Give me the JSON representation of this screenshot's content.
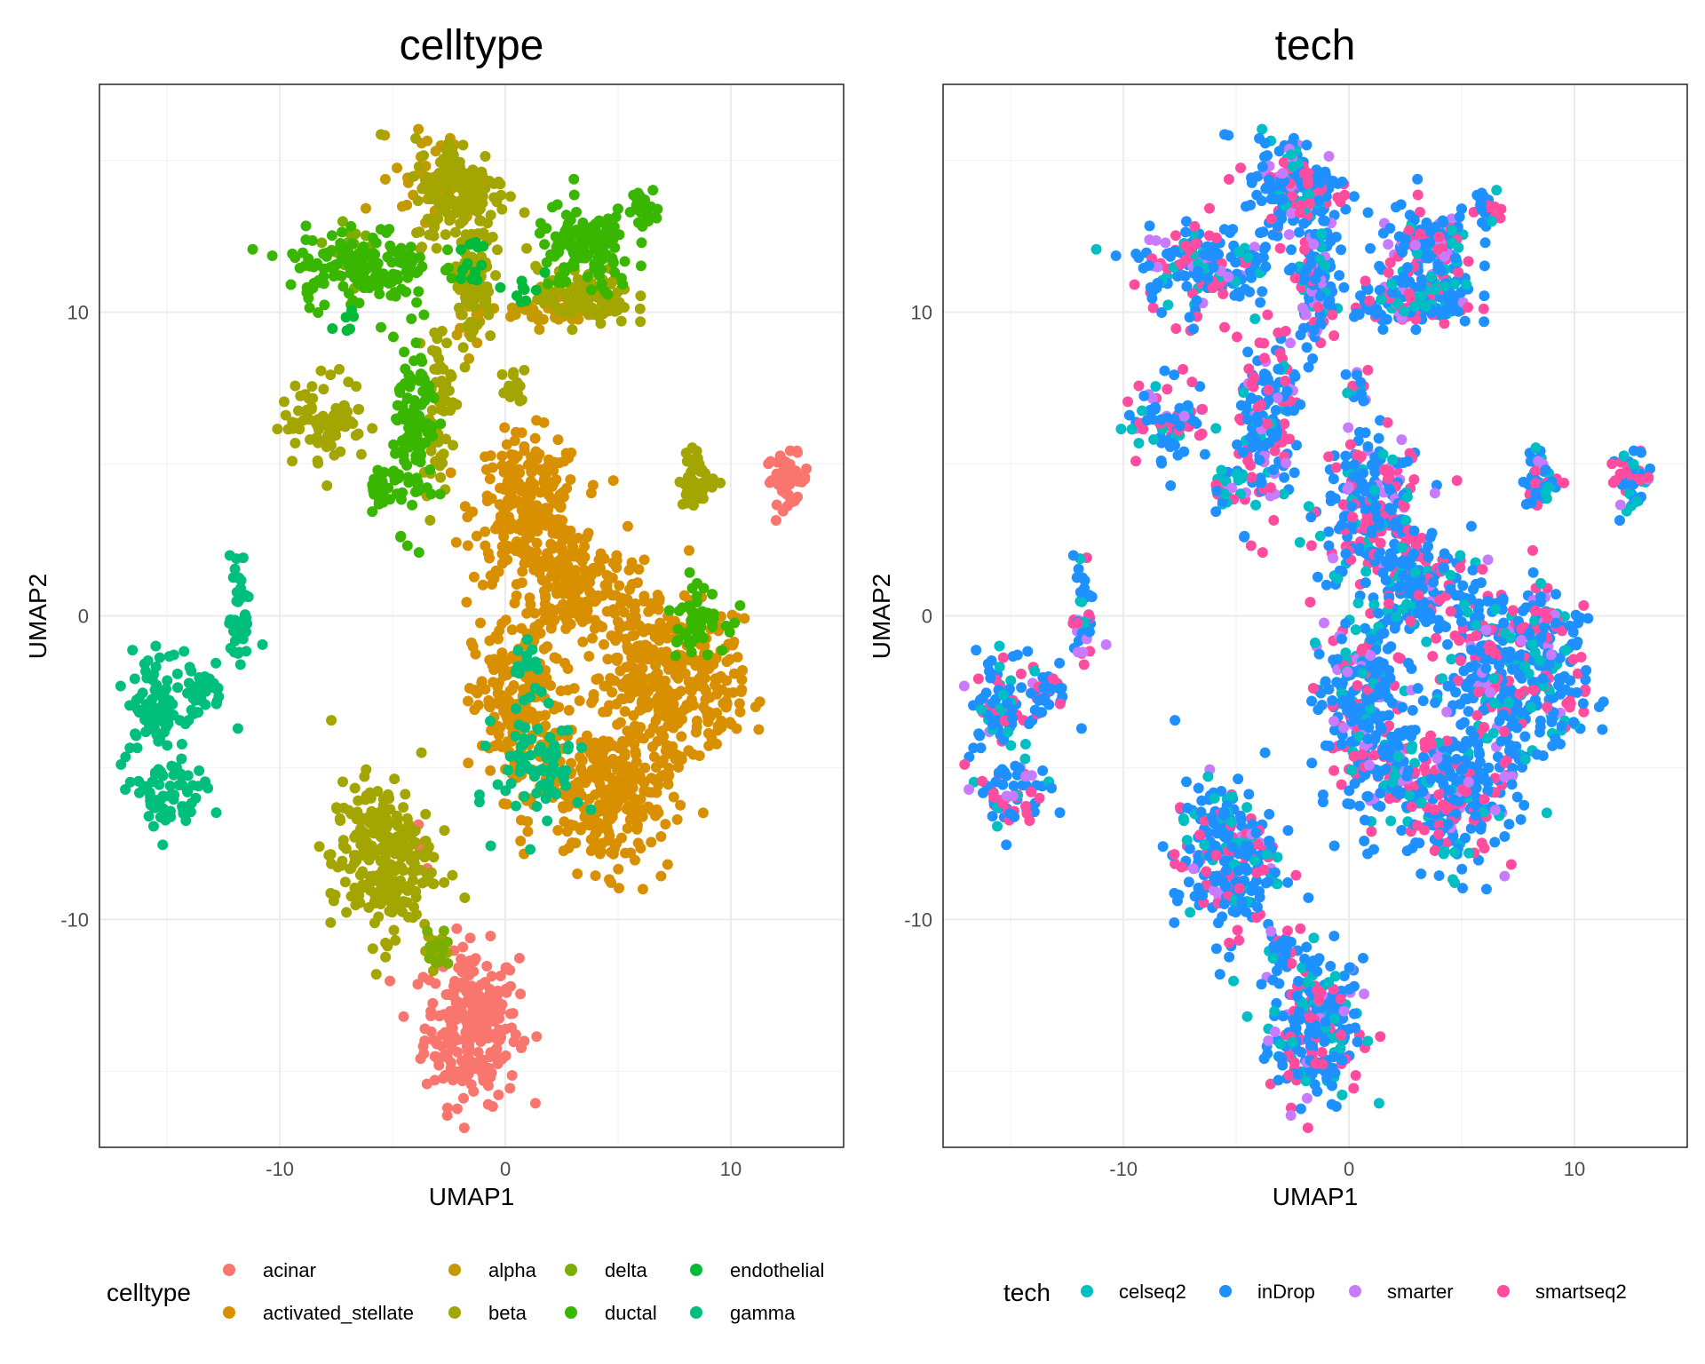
{
  "chart_data": [
    {
      "type": "scatter",
      "title": "celltype",
      "xlabel": "UMAP1",
      "ylabel": "UMAP2",
      "xlim": [
        -18,
        15
      ],
      "ylim": [
        -17.5,
        17.5
      ],
      "xticks": [
        -10,
        0,
        10
      ],
      "yticks": [
        -10,
        0,
        10
      ],
      "grid": true,
      "legend": {
        "title": "celltype",
        "position": "bottom",
        "entries": [
          {
            "label": "acinar",
            "color": "#F8766D"
          },
          {
            "label": "activated_stellate",
            "color": "#D89000"
          },
          {
            "label": "alpha",
            "color": "#C49A00"
          },
          {
            "label": "beta",
            "color": "#A3A500"
          },
          {
            "label": "delta",
            "color": "#7CAE00"
          },
          {
            "label": "ductal",
            "color": "#39B600"
          },
          {
            "label": "endothelial",
            "color": "#00BA38"
          },
          {
            "label": "gamma",
            "color": "#00BF7D"
          }
        ]
      },
      "series": [
        {
          "name": "acinar",
          "clusters": [
            [
              -1.5,
              -13.5,
              1.3,
              1.6,
              260
            ],
            [
              12.5,
              4.5,
              0.6,
              0.5,
              50
            ],
            [
              -4,
              -7.5,
              0.3,
              0.4,
              8
            ]
          ]
        },
        {
          "name": "activated_stellate",
          "clusters": [
            [
              1,
              3.5,
              1.5,
              1.5,
              250
            ],
            [
              3,
              1,
              1.5,
              1.2,
              180
            ],
            [
              0.5,
              -3,
              1.2,
              1.8,
              200
            ],
            [
              6.5,
              -2,
              1.8,
              2,
              300
            ],
            [
              4.5,
              -6,
              1.8,
              1.5,
              250
            ],
            [
              9,
              -2.5,
              1,
              1.5,
              80
            ]
          ]
        },
        {
          "name": "alpha",
          "clusters": [
            [
              -3,
              14.5,
              1.2,
              0.9,
              60
            ],
            [
              -1.5,
              10.2,
              0.4,
              0.9,
              30
            ],
            [
              2,
              10,
              1.2,
              0.3,
              40
            ]
          ]
        },
        {
          "name": "beta",
          "clusters": [
            [
              -2,
              14,
              1.3,
              1.1,
              150
            ],
            [
              -1.5,
              11,
              0.6,
              1.3,
              80
            ],
            [
              -3,
              7,
              0.4,
              1.6,
              60
            ],
            [
              -5.5,
              -8,
              1.4,
              1.6,
              250
            ],
            [
              -3,
              -11,
              0.3,
              0.4,
              20
            ],
            [
              3.5,
              10.5,
              1.3,
              0.6,
              100
            ],
            [
              -8,
              6.5,
              1.2,
              0.9,
              80
            ],
            [
              8.5,
              4.5,
              0.5,
              0.6,
              50
            ],
            [
              0.5,
              7.5,
              0.4,
              0.4,
              15
            ]
          ]
        },
        {
          "name": "delta",
          "clusters": [
            [
              -3,
              -11,
              0.4,
              0.6,
              15
            ],
            [
              -7,
              12,
              0.6,
              0.5,
              30
            ]
          ]
        },
        {
          "name": "ductal",
          "clusters": [
            [
              -6.5,
              11.5,
              2,
              0.8,
              150
            ],
            [
              -4,
              6,
              0.6,
              1.8,
              120
            ],
            [
              -5.5,
              4,
              0.3,
              0.4,
              20
            ],
            [
              3.5,
              12,
              1.4,
              0.9,
              120
            ],
            [
              6,
              13.5,
              0.5,
              0.4,
              30
            ],
            [
              8.5,
              0,
              0.8,
              0.7,
              50
            ]
          ]
        },
        {
          "name": "endothelial",
          "clusters": [
            [
              -1.5,
              11.5,
              0.5,
              0.5,
              15
            ],
            [
              1,
              10.8,
              0.4,
              0.3,
              8
            ],
            [
              -7,
              9.5,
              0.3,
              0.3,
              6
            ]
          ]
        },
        {
          "name": "gamma",
          "clusters": [
            [
              -15.5,
              -3,
              0.8,
              1.2,
              80
            ],
            [
              -15,
              -6,
              1,
              0.8,
              70
            ],
            [
              -13.5,
              -2.5,
              0.8,
              0.5,
              40
            ],
            [
              -11.8,
              0,
              0.3,
              1.3,
              40
            ],
            [
              1.5,
              -5,
              1.2,
              1.2,
              80
            ],
            [
              1,
              -1.5,
              0.4,
              0.6,
              15
            ]
          ]
        }
      ]
    },
    {
      "type": "scatter",
      "title": "tech",
      "xlabel": "UMAP1",
      "ylabel": "UMAP2",
      "xlim": [
        -18,
        15
      ],
      "ylim": [
        -17.5,
        17.5
      ],
      "xticks": [
        -10,
        0,
        10
      ],
      "yticks": [
        -10,
        0,
        10
      ],
      "grid": true,
      "legend": {
        "title": "tech",
        "position": "bottom",
        "entries": [
          {
            "label": "celseq2",
            "color": "#00BFC4"
          },
          {
            "label": "inDrop",
            "color": "#1E90FF"
          },
          {
            "label": "smarter",
            "color": "#C77CFF"
          },
          {
            "label": "smartseq2",
            "color": "#FF4C9F"
          }
        ]
      },
      "mix": {
        "celseq2": 0.14,
        "inDrop": 0.55,
        "smarter": 0.08,
        "smartseq2": 0.23
      }
    }
  ]
}
